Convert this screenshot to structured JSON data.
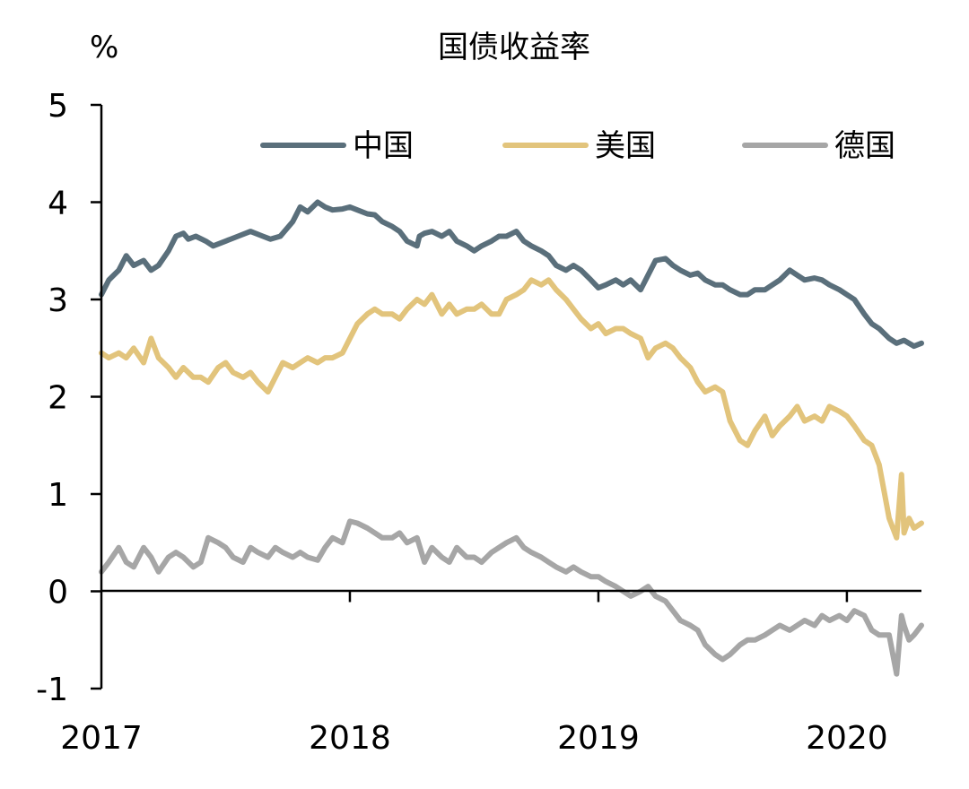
{
  "chart_data": {
    "type": "line",
    "title": "国债收益率",
    "unit": "%",
    "ylim": [
      -1,
      5
    ],
    "yticks": [
      -1,
      0,
      1,
      2,
      3,
      4,
      5
    ],
    "ytick_labels": [
      "-1",
      "0",
      "1",
      "2",
      "3",
      "4",
      "5"
    ],
    "xlim": [
      2017.0,
      2020.3
    ],
    "xticks": [
      2017,
      2018,
      2019,
      2020
    ],
    "xtick_labels": [
      "2017",
      "2018",
      "2019",
      "2020"
    ],
    "legend_placement": "top",
    "grid": false,
    "series": [
      {
        "name": "中国",
        "color": "#5a6f7b",
        "x": [
          2017.0,
          2017.03,
          2017.07,
          2017.1,
          2017.13,
          2017.17,
          2017.2,
          2017.23,
          2017.27,
          2017.3,
          2017.33,
          2017.35,
          2017.38,
          2017.42,
          2017.45,
          2017.5,
          2017.55,
          2017.6,
          2017.65,
          2017.68,
          2017.72,
          2017.77,
          2017.8,
          2017.83,
          2017.87,
          2017.9,
          2017.93,
          2017.97,
          2018.0,
          2018.03,
          2018.07,
          2018.1,
          2018.13,
          2018.17,
          2018.2,
          2018.23,
          2018.27,
          2018.28,
          2018.3,
          2018.33,
          2018.37,
          2018.4,
          2018.43,
          2018.47,
          2018.5,
          2018.53,
          2018.57,
          2018.6,
          2018.63,
          2018.67,
          2018.7,
          2018.73,
          2018.77,
          2018.8,
          2018.83,
          2018.87,
          2018.9,
          2018.93,
          2018.97,
          2019.0,
          2019.03,
          2019.07,
          2019.1,
          2019.13,
          2019.17,
          2019.2,
          2019.23,
          2019.27,
          2019.3,
          2019.33,
          2019.37,
          2019.4,
          2019.43,
          2019.47,
          2019.5,
          2019.53,
          2019.57,
          2019.6,
          2019.63,
          2019.67,
          2019.7,
          2019.73,
          2019.77,
          2019.8,
          2019.83,
          2019.87,
          2019.9,
          2019.93,
          2019.97,
          2020.0,
          2020.03,
          2020.07,
          2020.1,
          2020.13,
          2020.17,
          2020.2,
          2020.23,
          2020.27,
          2020.3
        ],
        "values": [
          3.05,
          3.2,
          3.3,
          3.45,
          3.35,
          3.4,
          3.3,
          3.35,
          3.5,
          3.65,
          3.68,
          3.62,
          3.65,
          3.6,
          3.55,
          3.6,
          3.65,
          3.7,
          3.65,
          3.62,
          3.65,
          3.8,
          3.95,
          3.9,
          4.0,
          3.95,
          3.92,
          3.93,
          3.95,
          3.92,
          3.88,
          3.87,
          3.8,
          3.75,
          3.7,
          3.6,
          3.55,
          3.65,
          3.68,
          3.7,
          3.65,
          3.7,
          3.6,
          3.55,
          3.5,
          3.55,
          3.6,
          3.65,
          3.65,
          3.7,
          3.6,
          3.55,
          3.5,
          3.45,
          3.35,
          3.3,
          3.35,
          3.3,
          3.2,
          3.12,
          3.15,
          3.2,
          3.15,
          3.2,
          3.1,
          3.25,
          3.4,
          3.42,
          3.35,
          3.3,
          3.25,
          3.27,
          3.2,
          3.15,
          3.15,
          3.1,
          3.05,
          3.05,
          3.1,
          3.1,
          3.15,
          3.2,
          3.3,
          3.25,
          3.2,
          3.22,
          3.2,
          3.15,
          3.1,
          3.05,
          3.0,
          2.85,
          2.75,
          2.7,
          2.6,
          2.55,
          2.58,
          2.52,
          2.55
        ]
      },
      {
        "name": "美国",
        "color": "#e2c47c",
        "x": [
          2017.0,
          2017.03,
          2017.07,
          2017.1,
          2017.13,
          2017.17,
          2017.2,
          2017.23,
          2017.27,
          2017.3,
          2017.33,
          2017.37,
          2017.4,
          2017.43,
          2017.47,
          2017.5,
          2017.53,
          2017.57,
          2017.6,
          2017.63,
          2017.67,
          2017.7,
          2017.73,
          2017.77,
          2017.8,
          2017.83,
          2017.87,
          2017.9,
          2017.93,
          2017.97,
          2018.0,
          2018.03,
          2018.07,
          2018.1,
          2018.13,
          2018.17,
          2018.2,
          2018.23,
          2018.27,
          2018.3,
          2018.33,
          2018.37,
          2018.4,
          2018.43,
          2018.47,
          2018.5,
          2018.53,
          2018.57,
          2018.6,
          2018.63,
          2018.67,
          2018.7,
          2018.73,
          2018.77,
          2018.8,
          2018.83,
          2018.87,
          2018.9,
          2018.93,
          2018.97,
          2019.0,
          2019.03,
          2019.07,
          2019.1,
          2019.13,
          2019.17,
          2019.2,
          2019.23,
          2019.27,
          2019.3,
          2019.33,
          2019.37,
          2019.4,
          2019.43,
          2019.47,
          2019.5,
          2019.53,
          2019.57,
          2019.6,
          2019.63,
          2019.67,
          2019.7,
          2019.73,
          2019.77,
          2019.8,
          2019.83,
          2019.87,
          2019.9,
          2019.93,
          2019.97,
          2020.0,
          2020.03,
          2020.07,
          2020.1,
          2020.13,
          2020.17,
          2020.2,
          2020.22,
          2020.23,
          2020.25,
          2020.27,
          2020.3
        ],
        "values": [
          2.45,
          2.4,
          2.45,
          2.4,
          2.5,
          2.35,
          2.6,
          2.4,
          2.3,
          2.2,
          2.3,
          2.2,
          2.2,
          2.15,
          2.3,
          2.35,
          2.25,
          2.2,
          2.25,
          2.15,
          2.05,
          2.2,
          2.35,
          2.3,
          2.35,
          2.4,
          2.35,
          2.4,
          2.4,
          2.45,
          2.6,
          2.75,
          2.85,
          2.9,
          2.85,
          2.85,
          2.8,
          2.9,
          3.0,
          2.95,
          3.05,
          2.85,
          2.95,
          2.85,
          2.9,
          2.9,
          2.95,
          2.85,
          2.85,
          3.0,
          3.05,
          3.1,
          3.2,
          3.15,
          3.2,
          3.1,
          3.0,
          2.9,
          2.8,
          2.7,
          2.75,
          2.65,
          2.7,
          2.7,
          2.65,
          2.6,
          2.4,
          2.5,
          2.55,
          2.5,
          2.4,
          2.3,
          2.15,
          2.05,
          2.1,
          2.05,
          1.75,
          1.55,
          1.5,
          1.65,
          1.8,
          1.6,
          1.7,
          1.8,
          1.9,
          1.75,
          1.8,
          1.75,
          1.9,
          1.85,
          1.8,
          1.7,
          1.55,
          1.5,
          1.3,
          0.75,
          0.55,
          1.2,
          0.6,
          0.75,
          0.65,
          0.7
        ]
      },
      {
        "name": "德国",
        "color": "#a6a6a6",
        "x": [
          2017.0,
          2017.03,
          2017.07,
          2017.1,
          2017.13,
          2017.17,
          2017.2,
          2017.23,
          2017.27,
          2017.3,
          2017.33,
          2017.37,
          2017.4,
          2017.43,
          2017.47,
          2017.5,
          2017.53,
          2017.57,
          2017.6,
          2017.63,
          2017.67,
          2017.7,
          2017.73,
          2017.77,
          2017.8,
          2017.83,
          2017.87,
          2017.9,
          2017.93,
          2017.97,
          2018.0,
          2018.03,
          2018.07,
          2018.1,
          2018.13,
          2018.17,
          2018.2,
          2018.23,
          2018.27,
          2018.3,
          2018.33,
          2018.37,
          2018.4,
          2018.43,
          2018.47,
          2018.5,
          2018.53,
          2018.57,
          2018.6,
          2018.63,
          2018.67,
          2018.7,
          2018.73,
          2018.77,
          2018.8,
          2018.83,
          2018.87,
          2018.9,
          2018.93,
          2018.97,
          2019.0,
          2019.03,
          2019.07,
          2019.1,
          2019.13,
          2019.17,
          2019.2,
          2019.23,
          2019.27,
          2019.3,
          2019.33,
          2019.37,
          2019.4,
          2019.43,
          2019.47,
          2019.5,
          2019.53,
          2019.57,
          2019.6,
          2019.63,
          2019.67,
          2019.7,
          2019.73,
          2019.77,
          2019.8,
          2019.83,
          2019.87,
          2019.9,
          2019.93,
          2019.97,
          2020.0,
          2020.03,
          2020.07,
          2020.1,
          2020.13,
          2020.17,
          2020.2,
          2020.22,
          2020.23,
          2020.25,
          2020.27,
          2020.3
        ],
        "values": [
          0.2,
          0.3,
          0.45,
          0.3,
          0.25,
          0.45,
          0.35,
          0.2,
          0.35,
          0.4,
          0.35,
          0.25,
          0.3,
          0.55,
          0.5,
          0.45,
          0.35,
          0.3,
          0.45,
          0.4,
          0.35,
          0.45,
          0.4,
          0.35,
          0.4,
          0.35,
          0.32,
          0.45,
          0.55,
          0.5,
          0.72,
          0.7,
          0.65,
          0.6,
          0.55,
          0.55,
          0.6,
          0.5,
          0.55,
          0.3,
          0.45,
          0.35,
          0.3,
          0.45,
          0.35,
          0.35,
          0.3,
          0.4,
          0.45,
          0.5,
          0.55,
          0.45,
          0.4,
          0.35,
          0.3,
          0.25,
          0.2,
          0.25,
          0.2,
          0.15,
          0.15,
          0.1,
          0.05,
          0.0,
          -0.05,
          0.0,
          0.05,
          -0.05,
          -0.1,
          -0.2,
          -0.3,
          -0.35,
          -0.4,
          -0.55,
          -0.65,
          -0.7,
          -0.65,
          -0.55,
          -0.5,
          -0.5,
          -0.45,
          -0.4,
          -0.35,
          -0.4,
          -0.35,
          -0.3,
          -0.35,
          -0.25,
          -0.3,
          -0.25,
          -0.3,
          -0.2,
          -0.25,
          -0.4,
          -0.45,
          -0.45,
          -0.85,
          -0.25,
          -0.35,
          -0.5,
          -0.45,
          -0.35
        ]
      }
    ]
  }
}
